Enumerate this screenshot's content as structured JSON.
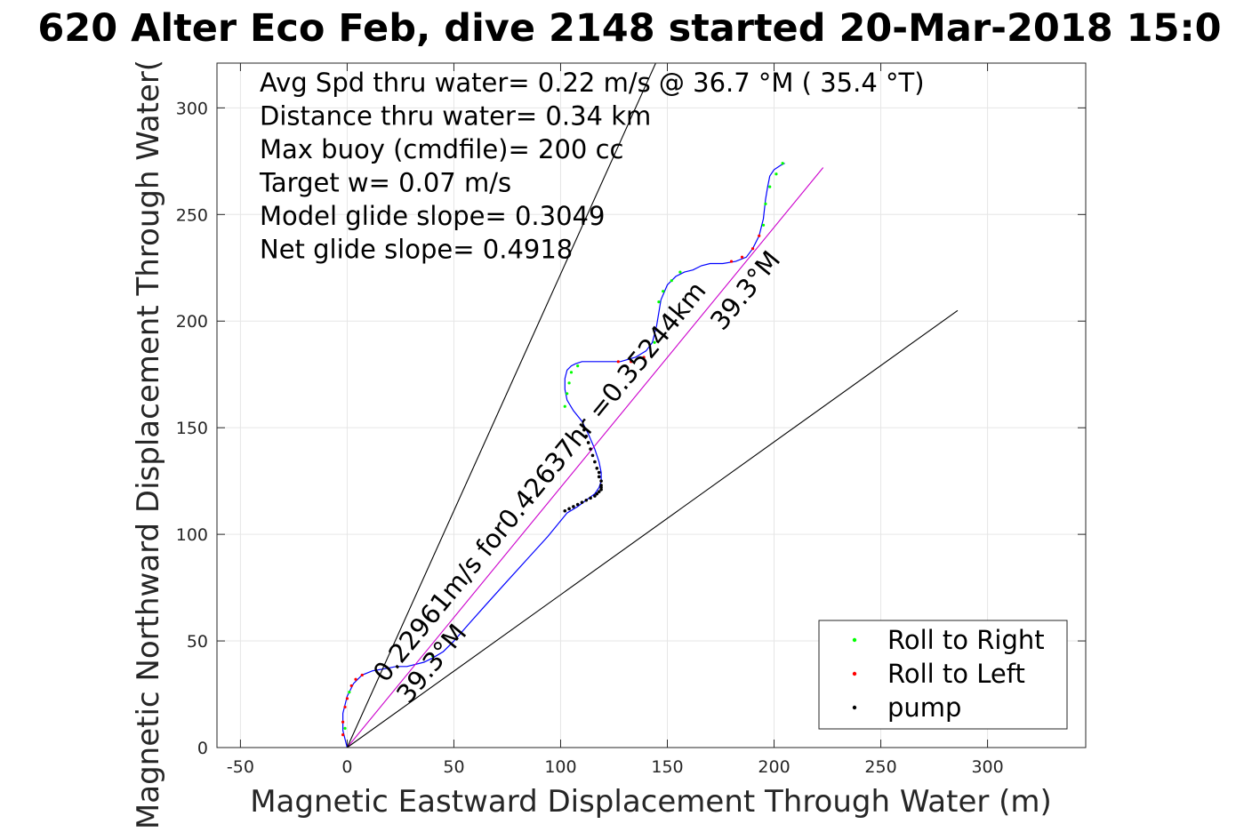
{
  "chart_data": {
    "type": "line",
    "title": "620 Alter Eco Feb, dive 2148 started 20-Mar-2018 15:0",
    "xlabel": "Magnetic Eastward Displacement Through Water (m)",
    "ylabel": "Magnetic Northward Displacement Through Water(",
    "xlim": [
      -61,
      346
    ],
    "ylim": [
      0,
      321
    ],
    "xticks": [
      -50,
      0,
      50,
      100,
      150,
      200,
      250,
      300
    ],
    "xtick_labels": [
      "-50",
      "0",
      "50",
      "100",
      "150",
      "200",
      "250",
      "300"
    ],
    "yticks": [
      0,
      50,
      100,
      150,
      200,
      250,
      300
    ],
    "ytick_labels": [
      "0",
      "50",
      "100",
      "150",
      "200",
      "250",
      "300"
    ],
    "grid": true,
    "legend_position": "bottom-right",
    "info_lines": [
      "Avg Spd thru water=  0.22 m/s @  36.7 °M ( 35.4 °T)",
      "Distance thru water=  0.34 km",
      "Max buoy (cmdfile)= 200 cc",
      "Target w= 0.07 m/s",
      "Model glide slope= 0.3049",
      "Net glide slope= 0.4918"
    ],
    "annotations": [
      {
        "text": "0.22961m/s for0.42637hr =0.35244km",
        "x": 18,
        "y": 30,
        "angle_deg": 50.7
      },
      {
        "text": "39.3°M",
        "x": 29,
        "y": 20,
        "angle_deg": 50.7
      },
      {
        "text": "39.3°M",
        "x": 176,
        "y": 195,
        "angle_deg": 50.7
      }
    ],
    "legend": [
      {
        "label": "Roll to Right",
        "color": "#00ff00"
      },
      {
        "label": "Roll to Left",
        "color": "#ff0000"
      },
      {
        "label": "pump",
        "color": "#000000"
      }
    ],
    "series": [
      {
        "name": "trajectory",
        "color": "#0000ff",
        "x": [
          0,
          -2,
          -2,
          0,
          3,
          7,
          12,
          18,
          23,
          28,
          32,
          36,
          40,
          45,
          50,
          57,
          65,
          74,
          84,
          94,
          103,
          108,
          112,
          116,
          118,
          119,
          119,
          118,
          116,
          113,
          110,
          106,
          103,
          102,
          102,
          103,
          105,
          107,
          110,
          115,
          120,
          128,
          135,
          140,
          143,
          145,
          147,
          150,
          154,
          158,
          162,
          166,
          170,
          176,
          182,
          187,
          190,
          193,
          195,
          196,
          197,
          198,
          200,
          203,
          205
        ],
        "y": [
          0,
          8,
          16,
          24,
          30,
          34,
          36,
          37,
          38,
          38,
          39,
          40,
          42,
          45,
          50,
          58,
          67,
          77,
          88,
          99,
          110,
          113,
          116,
          119,
          122,
          125,
          129,
          134,
          140,
          147,
          153,
          158,
          163,
          168,
          173,
          177,
          179,
          180,
          181,
          181,
          181,
          181,
          183,
          186,
          190,
          198,
          210,
          217,
          221,
          223,
          224,
          226,
          227,
          227,
          228,
          230,
          234,
          240,
          248,
          257,
          263,
          268,
          271,
          273,
          274
        ]
      },
      {
        "name": "heading",
        "color": "#cc00cc",
        "x": [
          0,
          223
        ],
        "y": [
          0,
          272
        ]
      },
      {
        "name": "bound-upper",
        "color": "#000000",
        "x": [
          0,
          145
        ],
        "y": [
          0,
          322
        ]
      },
      {
        "name": "bound-lower",
        "color": "#000000",
        "x": [
          0,
          286
        ],
        "y": [
          0,
          205
        ]
      }
    ],
    "points": {
      "roll_right": {
        "color": "#00ff00",
        "x": [
          -1,
          1,
          40,
          102,
          103,
          104,
          105,
          108,
          144,
          146,
          148,
          152,
          156,
          195,
          196,
          198,
          201,
          204
        ],
        "y": [
          9,
          26,
          43,
          160,
          166,
          171,
          176,
          179,
          190,
          209,
          214,
          219,
          223,
          245,
          255,
          263,
          269,
          274
        ]
      },
      "roll_left": {
        "color": "#ff0000",
        "x": [
          -2,
          -2,
          -1,
          0,
          2,
          4,
          7,
          127,
          133,
          139,
          180,
          185,
          190,
          193
        ],
        "y": [
          6,
          12,
          19,
          23,
          29,
          32,
          34,
          181,
          181,
          183,
          228,
          230,
          234,
          240
        ]
      },
      "pump": {
        "color": "#000000",
        "x": [
          102,
          104,
          106,
          108,
          110,
          112,
          114,
          116,
          117,
          118,
          119,
          119,
          119,
          119,
          118,
          118,
          117,
          116,
          115,
          114,
          113,
          112,
          111
        ],
        "y": [
          111,
          112,
          113,
          114,
          115,
          116,
          117,
          118,
          119,
          120,
          121,
          122,
          123,
          125,
          127,
          129,
          131,
          134,
          137,
          140,
          143,
          146,
          149
        ]
      }
    }
  }
}
